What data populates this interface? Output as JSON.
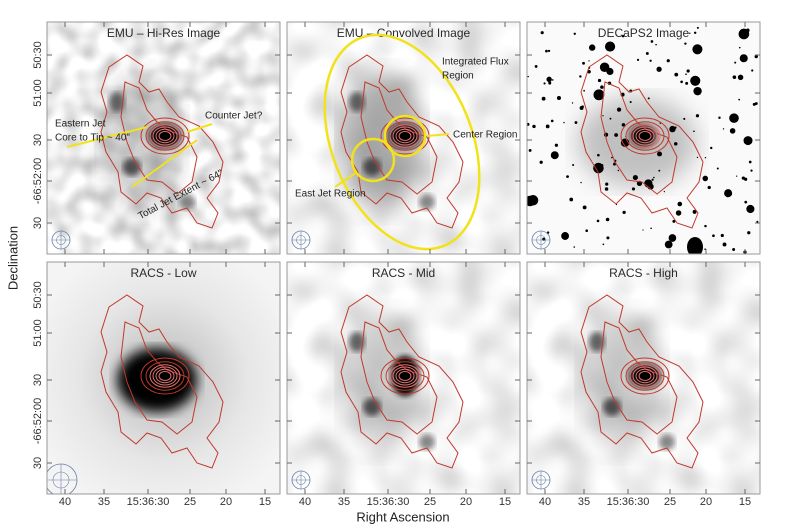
{
  "axes": {
    "x_label": "Right Ascension",
    "y_label": "Declination",
    "x_ticks": [
      "40",
      "35",
      "15:36:30",
      "25",
      "20",
      "15"
    ],
    "y_ticks": [
      "50:30",
      "51:00",
      "30",
      "-66:52:00",
      "30"
    ]
  },
  "panels": [
    {
      "title": "EMU – Hi-Res Image",
      "annotations": [
        "Eastern Jet",
        "Core to Tip ~ 40\"",
        "Counter Jet?",
        "Total Jet Extent ~ 64\""
      ]
    },
    {
      "title": "EMU – Convolved Image",
      "annotations": [
        "Integrated Flux",
        "Region",
        "Center Region",
        "East Jet Region"
      ]
    },
    {
      "title": "DECaPS2 Image",
      "annotations": []
    },
    {
      "title": "RACS - Low",
      "annotations": []
    },
    {
      "title": "RACS - Mid",
      "annotations": []
    },
    {
      "title": "RACS - High",
      "annotations": []
    }
  ]
}
